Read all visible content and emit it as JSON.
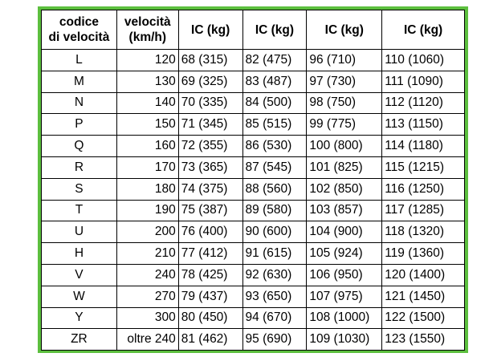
{
  "table": {
    "header": [
      [
        "codice",
        "di velocità"
      ],
      [
        "velocità",
        "(km/h)"
      ],
      [
        "IC (kg)"
      ],
      [
        "IC (kg)"
      ],
      [
        "IC (kg)"
      ],
      [
        "IC (kg)"
      ]
    ],
    "rows": [
      [
        "L",
        "120",
        "68 (315)",
        "82 (475)",
        "96 (710)",
        "110 (1060)"
      ],
      [
        "M",
        "130",
        "69 (325)",
        "83 (487)",
        "97 (730)",
        "111 (1090)"
      ],
      [
        "N",
        "140",
        "70 (335)",
        "84 (500)",
        "98 (750)",
        "112 (1120)"
      ],
      [
        "P",
        "150",
        "71 (345)",
        "85 (515)",
        "99 (775)",
        "113 (1150)"
      ],
      [
        "Q",
        "160",
        "72 (355)",
        "86 (530)",
        "100 (800)",
        "114 (1180)"
      ],
      [
        "R",
        "170",
        "73 (365)",
        "87 (545)",
        "101 (825)",
        "115 (1215)"
      ],
      [
        "S",
        "180",
        "74 (375)",
        "88 (560)",
        "102 (850)",
        "116 (1250)"
      ],
      [
        "T",
        "190",
        "75 (387)",
        "89 (580)",
        "103 (857)",
        "117 (1285)"
      ],
      [
        "U",
        "200",
        "76 (400)",
        "90 (600)",
        "104 (900)",
        "118 (1320)"
      ],
      [
        "H",
        "210",
        "77 (412)",
        "91 (615)",
        "105 (924)",
        "119 (1360)"
      ],
      [
        "V",
        "240",
        "78 (425)",
        "92 (630)",
        "106 (950)",
        "120 (1400)"
      ],
      [
        "W",
        "270",
        "79 (437)",
        "93 (650)",
        "107 (975)",
        "121 (1450)"
      ],
      [
        "Y",
        "300",
        "80 (450)",
        "94 (670)",
        "108 (1000)",
        "122 (1500)"
      ],
      [
        "ZR",
        "oltre 240",
        "81 (462)",
        "95 (690)",
        "109 (1030)",
        "123 (1550)"
      ]
    ]
  }
}
